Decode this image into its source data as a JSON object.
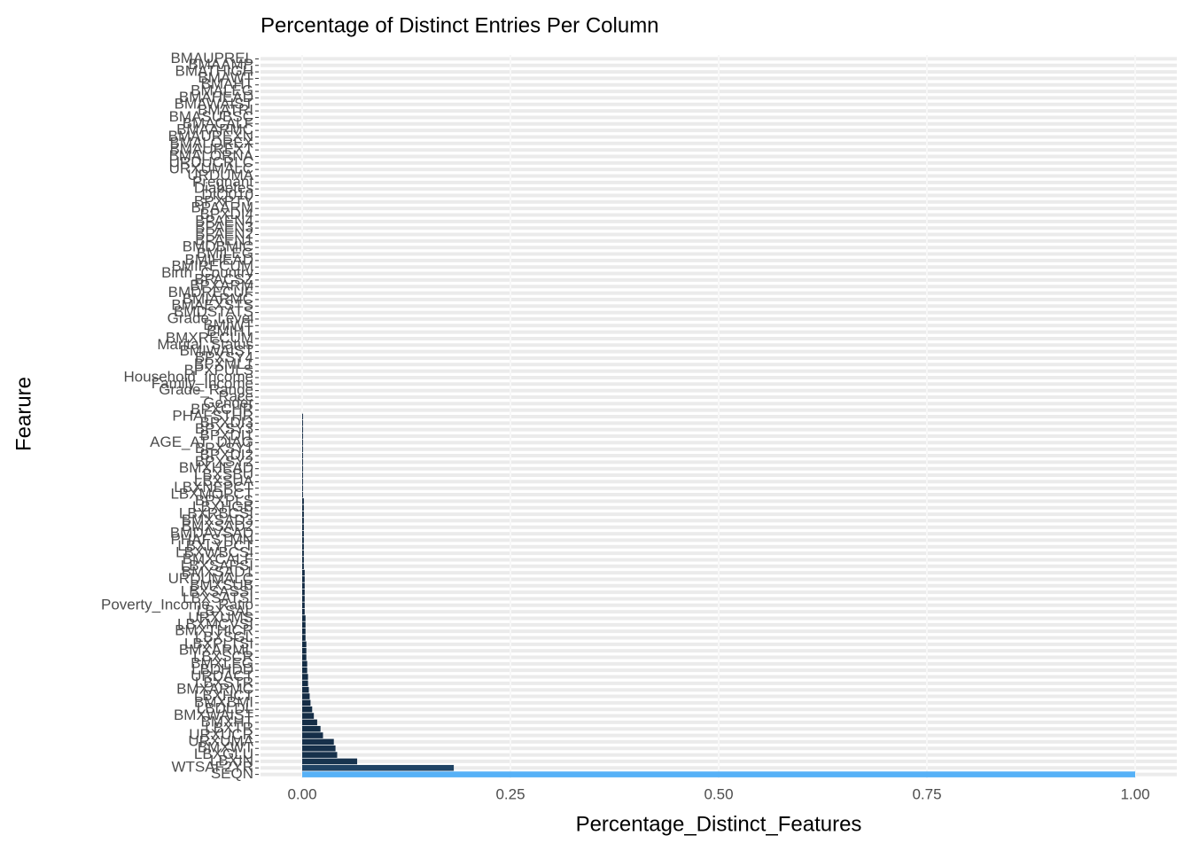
{
  "chart_data": {
    "type": "bar",
    "orientation": "horizontal",
    "title": "Percentage of Distinct Entries Per Column",
    "x_label": "Percentage_Distinct_Features",
    "y_label": "Fearure",
    "categories": [
      "SEQN",
      "WTSAF2YR",
      "LBXIN",
      "LBXGLU",
      "BMXWT",
      "URXUMA",
      "URXUCR",
      "LBXTR",
      "BMXHT",
      "BMXWAIST",
      "LBDLDL",
      "BMXBMI",
      "LBXHCT",
      "BMXARMC",
      "LBXSTR",
      "URDACT",
      "LBDHDD",
      "BMXLEG",
      "LBXSCR",
      "BMXARML",
      "LBXPLTSI",
      "LBXSGL",
      "BMXTHICR",
      "LBXMCVSI",
      "URXUMS",
      "LBXSAL",
      "Poverty_Income_Ratio",
      "LBXSATSI",
      "LBXSASSI",
      "BMXSUB",
      "URDUMALC",
      "BMXSAD1",
      "LBXSAPSI",
      "BMXCALF",
      "LBXWBCSI",
      "LBXLYPCT",
      "PHAFSTMN",
      "BMDAVSAD",
      "BMXSAD2",
      "BMXSAD3",
      "LBXRBCSI",
      "LBXHGB",
      "BPXPLS",
      "LBXMOPCT",
      "LBXNEPCT",
      "LBXSUA",
      "LBXSBU",
      "BMXHEAD",
      "BPXSY2",
      "BPXDI2",
      "BPXSY1",
      "AGE_AT_DIAG",
      "BPXDI1",
      "BPXSY3",
      "BPXDI3",
      "PHAFSTHR",
      "BPXCHR",
      "Gender",
      "Race",
      "Grade_Range",
      "Family_Income",
      "Household_Income",
      "BPXPULS",
      "BPXML1",
      "BPXSY4",
      "BMIWAIST",
      "Marital_Status",
      "BMXRECUM",
      "BMIHT",
      "BMIWT",
      "Grade_Level",
      "BMDSTATS",
      "BMAEXSTS",
      "BMIARMC",
      "BMDRECUF",
      "BPXARM",
      "BPACSZ",
      "Birth_Country",
      "BMIRECUM",
      "BMIHEAD",
      "BMILEG",
      "BMDBMIC",
      "BPAEN1",
      "BPAEN2",
      "BPAEN3",
      "BPAEN4",
      "BPXDI4",
      "BPAARM",
      "BPXPTY",
      "DIQ010",
      "Diabetes",
      "Pregnant",
      "URDUMA",
      "URXUMALC",
      "URDUCRLC",
      "BMALORNA",
      "BMAUREXT",
      "BMALOREX",
      "BMAUREXN",
      "BMAARMC",
      "BMACALF",
      "BMASUBSC",
      "BMATRI",
      "BMAWAIST",
      "BMAHEAD",
      "BMALEG",
      "BMAHT",
      "BMAWT",
      "BMATHIGH",
      "BMAAMP",
      "BMAUPREL"
    ],
    "values": [
      1.0,
      0.182,
      0.066,
      0.042,
      0.04,
      0.038,
      0.025,
      0.022,
      0.018,
      0.014,
      0.012,
      0.01,
      0.009,
      0.008,
      0.007,
      0.007,
      0.006,
      0.006,
      0.005,
      0.005,
      0.005,
      0.004,
      0.004,
      0.004,
      0.004,
      0.003,
      0.003,
      0.003,
      0.003,
      0.003,
      0.003,
      0.003,
      0.002,
      0.002,
      0.002,
      0.002,
      0.002,
      0.002,
      0.002,
      0.002,
      0.002,
      0.002,
      0.002,
      0.001,
      0.001,
      0.001,
      0.001,
      0.001,
      0.001,
      0.001,
      0.001,
      0.001,
      0.001,
      0.001,
      0.001,
      0.001,
      0,
      0,
      0,
      0,
      0,
      0,
      0,
      0,
      0,
      0,
      0,
      0,
      0,
      0,
      0,
      0,
      0,
      0,
      0,
      0,
      0,
      0,
      0,
      0,
      0,
      0,
      0,
      0,
      0,
      0,
      0,
      0,
      0,
      0,
      0,
      0,
      0,
      0,
      0,
      0,
      0,
      0,
      0,
      0,
      0,
      0,
      0,
      0,
      0,
      0,
      0,
      0,
      0,
      0,
      0
    ],
    "fill_low": "#132B43",
    "fill_high": "#56B1F7",
    "xlim": [
      -0.05,
      1.05
    ],
    "xticks": [
      {
        "value": 0,
        "label": "0.00"
      },
      {
        "value": 0.25,
        "label": "0.25"
      },
      {
        "value": 0.5,
        "label": "0.50"
      },
      {
        "value": 0.75,
        "label": "0.75"
      },
      {
        "value": 1,
        "label": "1.00"
      }
    ],
    "grid": true
  }
}
